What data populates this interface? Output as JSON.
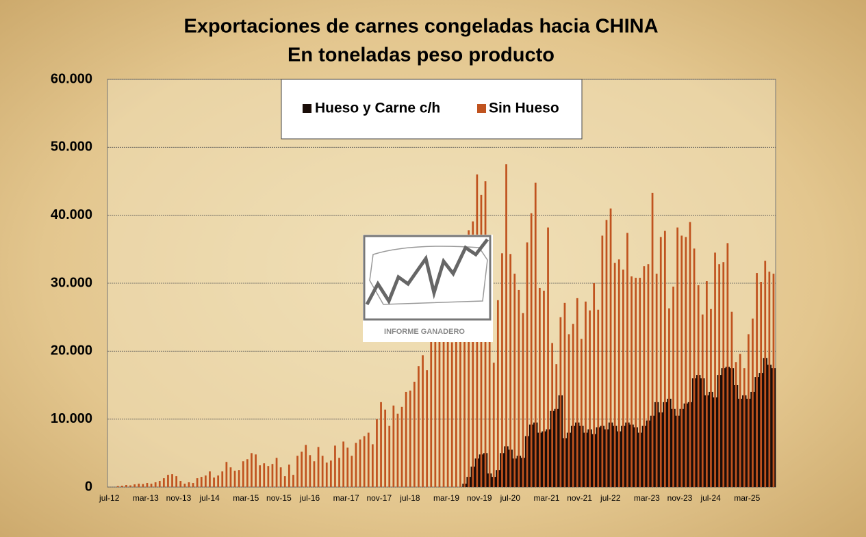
{
  "chart_data": {
    "type": "bar",
    "title": "Exportaciones de carnes congeladas hacia CHINA",
    "subtitle": "En toneladas peso producto",
    "logo_text": "INFORME GANADERO",
    "categories": [
      "jul-12",
      null,
      null,
      null,
      null,
      null,
      null,
      null,
      "mar-13",
      null,
      null,
      null,
      null,
      null,
      null,
      null,
      "nov-13",
      null,
      null,
      null,
      null,
      null,
      null,
      null,
      "jul-14",
      null,
      null,
      null,
      null,
      null,
      null,
      null,
      "mar-15",
      null,
      null,
      null,
      null,
      null,
      null,
      null,
      "nov-15",
      null,
      null,
      null,
      null,
      null,
      null,
      null,
      "jul-16",
      null,
      null,
      null,
      null,
      null,
      null,
      null,
      "mar-17",
      null,
      null,
      null,
      null,
      null,
      null,
      null,
      "nov-17",
      null,
      null,
      null,
      null,
      null,
      null,
      null,
      "jul-18",
      null,
      null,
      null,
      null,
      null,
      null,
      null,
      "mar-19",
      null,
      null,
      null,
      null,
      null,
      null,
      null,
      "nov-19",
      null,
      null,
      null,
      null,
      null,
      null,
      null,
      "jul-20",
      null,
      null,
      null,
      null,
      null,
      null,
      null,
      "mar-21",
      null,
      null,
      null,
      null,
      null,
      null,
      null,
      "nov-21",
      null,
      null,
      null,
      null,
      null,
      null,
      null,
      "jul-22",
      null,
      null,
      null,
      null,
      null,
      null,
      null,
      "mar-23",
      null,
      null,
      null,
      null,
      null,
      null,
      null,
      "nov-23",
      null,
      null,
      null,
      null,
      null,
      null,
      null,
      "jul-24",
      null,
      null,
      null,
      null,
      null,
      null,
      null,
      "mar-25",
      null,
      null,
      null,
      null,
      null,
      null,
      null
    ],
    "series": [
      {
        "name": "Hueso y Carne c/h",
        "color": "#1a0d08",
        "values": [
          0,
          0,
          0,
          0,
          0,
          0,
          0,
          0,
          0,
          0,
          0,
          0,
          0,
          0,
          0,
          0,
          0,
          0,
          0,
          0,
          0,
          0,
          0,
          0,
          0,
          0,
          0,
          0,
          0,
          0,
          0,
          0,
          0,
          0,
          0,
          0,
          0,
          0,
          0,
          0,
          0,
          0,
          0,
          0,
          0,
          0,
          0,
          0,
          0,
          0,
          0,
          0,
          0,
          0,
          0,
          0,
          0,
          0,
          0,
          0,
          0,
          0,
          0,
          0,
          0,
          0,
          0,
          0,
          0,
          0,
          0,
          0,
          0,
          0,
          0,
          0,
          0,
          0,
          0,
          0,
          0,
          0,
          0,
          0,
          0,
          500,
          1500,
          3000,
          4200,
          4800,
          5000,
          2000,
          1500,
          2500,
          5000,
          6000,
          5500,
          4200,
          4600,
          4300,
          7500,
          9200,
          9500,
          8000,
          8200,
          8500,
          11200,
          11500,
          13500,
          7200,
          8000,
          9000,
          9500,
          9000,
          8000,
          8500,
          7800,
          8800,
          9000,
          8500,
          9500,
          9000,
          8200,
          9000,
          9500,
          9200,
          8800,
          8000,
          9000,
          9800,
          10500,
          12500,
          11000,
          12500,
          13000,
          11500,
          10500,
          11500,
          12300,
          12500,
          16000,
          16500,
          16000,
          13500,
          14000,
          13200,
          16500,
          17500,
          17700,
          17500,
          15000,
          13000,
          13500,
          13000,
          14000,
          16200,
          16800,
          19000,
          18000,
          17500
        ]
      },
      {
        "name": "Sin Hueso",
        "color": "#c0531f",
        "values": [
          0,
          0,
          150,
          200,
          300,
          250,
          400,
          500,
          450,
          600,
          500,
          700,
          900,
          1300,
          1800,
          1900,
          1600,
          900,
          500,
          700,
          600,
          1300,
          1500,
          1700,
          2300,
          1400,
          1700,
          2300,
          3700,
          2900,
          2400,
          2500,
          3800,
          4100,
          5000,
          4800,
          3200,
          3500,
          3100,
          3400,
          4300,
          2900,
          1600,
          3300,
          1800,
          4600,
          5200,
          6200,
          4700,
          3800,
          5900,
          4600,
          3600,
          3900,
          6100,
          4300,
          6700,
          5800,
          4600,
          6500,
          7000,
          7500,
          8000,
          6300,
          10000,
          12500,
          11400,
          9000,
          12000,
          10800,
          11800,
          14000,
          14200,
          15500,
          17800,
          19400,
          17200,
          27000,
          23000,
          22500,
          21700,
          22000,
          21300,
          28300,
          36000,
          33500,
          37800,
          39100,
          46000,
          43000,
          45000,
          28600,
          18300,
          27500,
          34400,
          47500,
          34300,
          31400,
          29000,
          25600,
          36000,
          40300,
          44800,
          29300,
          28900,
          38200,
          21200,
          18100,
          25000,
          27100,
          22500,
          24000,
          27800,
          21800,
          27300,
          26000,
          30000,
          26100,
          37000,
          39300,
          41000,
          33000,
          33500,
          32000,
          37400,
          31000,
          30800,
          30800,
          32500,
          32800,
          43300,
          31400,
          36800,
          37700,
          26300,
          29500,
          38200,
          37000,
          36800,
          39000,
          35100,
          29700,
          25400,
          30300,
          26200,
          34500,
          32800,
          33100,
          35900,
          25800,
          18400,
          19600,
          17500,
          22500,
          24800,
          31500,
          30200,
          33300,
          31700,
          31400
        ]
      }
    ],
    "ylim": [
      0,
      60000
    ],
    "yticks": [
      0,
      {
        "value": 10000,
        "label": "10.000"
      },
      {
        "value": 20000,
        "label": "20.000"
      },
      {
        "value": 30000,
        "label": "30.000"
      },
      {
        "value": 40000,
        "label": "40.000"
      },
      {
        "value": 50000,
        "label": "50.000"
      },
      {
        "value": 60000,
        "label": "60.000"
      }
    ],
    "grid": true
  }
}
